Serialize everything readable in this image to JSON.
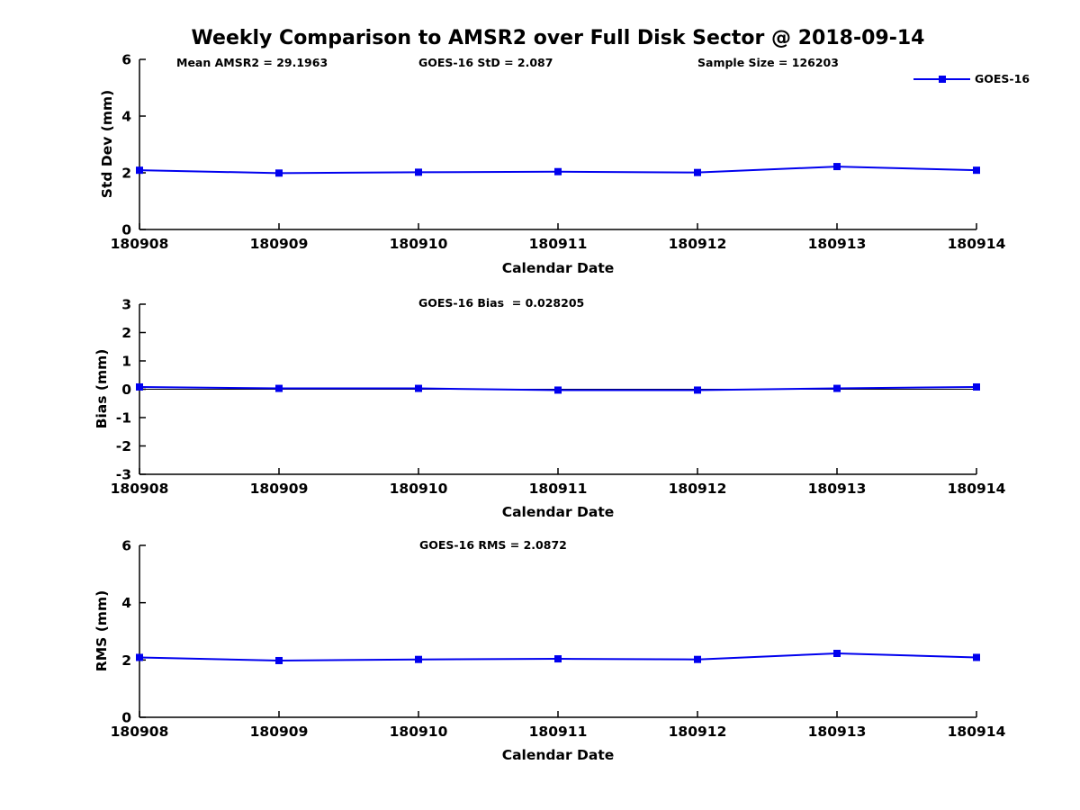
{
  "page": {
    "title": "Weekly Comparison to AMSR2 over Full Disk Sector @ 2018-09-14",
    "background": "#ffffff"
  },
  "colors": {
    "series": "#0000EE",
    "axis": "#000000",
    "text": "#000000"
  },
  "legend": {
    "label": "GOES-16"
  },
  "chart_data": [
    {
      "id": "std-dev",
      "type": "line",
      "title": "",
      "xlabel": "Calendar Date",
      "ylabel": "Std Dev (mm)",
      "ylim": [
        0,
        6
      ],
      "yticks": [
        0,
        2,
        4,
        6
      ],
      "categories": [
        "180908",
        "180909",
        "180910",
        "180911",
        "180912",
        "180913",
        "180914"
      ],
      "series": [
        {
          "name": "GOES-16",
          "color": "#0000EE",
          "marker": "square",
          "values": [
            2.09,
            1.99,
            2.02,
            2.04,
            2.01,
            2.22,
            2.09
          ]
        }
      ],
      "annotations": [
        {
          "text": "Mean AMSR2 = 29.1963"
        },
        {
          "text": "GOES-16 StD = 2.087"
        },
        {
          "text": "Sample Size = 126203"
        }
      ],
      "zero_line": false,
      "legend_position": "top-right-outside"
    },
    {
      "id": "bias",
      "type": "line",
      "title": "",
      "xlabel": "Calendar Date",
      "ylabel": "Bias (mm)",
      "ylim": [
        -3,
        3
      ],
      "yticks": [
        3,
        2,
        1,
        0,
        -1,
        -2,
        -3
      ],
      "categories": [
        "180908",
        "180909",
        "180910",
        "180911",
        "180912",
        "180913",
        "180914"
      ],
      "series": [
        {
          "name": "GOES-16",
          "color": "#0000EE",
          "marker": "square",
          "values": [
            0.08,
            0.03,
            0.03,
            -0.03,
            -0.03,
            0.03,
            0.08
          ]
        }
      ],
      "annotations": [
        {
          "text": "GOES-16 Bias  = 0.028205"
        }
      ],
      "zero_line": true
    },
    {
      "id": "rms",
      "type": "line",
      "title": "",
      "xlabel": "Calendar Date",
      "ylabel": "RMS (mm)",
      "ylim": [
        0,
        6
      ],
      "yticks": [
        0,
        2,
        4,
        6
      ],
      "categories": [
        "180908",
        "180909",
        "180910",
        "180911",
        "180912",
        "180913",
        "180914"
      ],
      "series": [
        {
          "name": "GOES-16",
          "color": "#0000EE",
          "marker": "square",
          "values": [
            2.09,
            1.98,
            2.02,
            2.04,
            2.02,
            2.23,
            2.09
          ]
        }
      ],
      "annotations": [
        {
          "text": "GOES-16 RMS = 2.0872"
        }
      ],
      "zero_line": false
    }
  ]
}
